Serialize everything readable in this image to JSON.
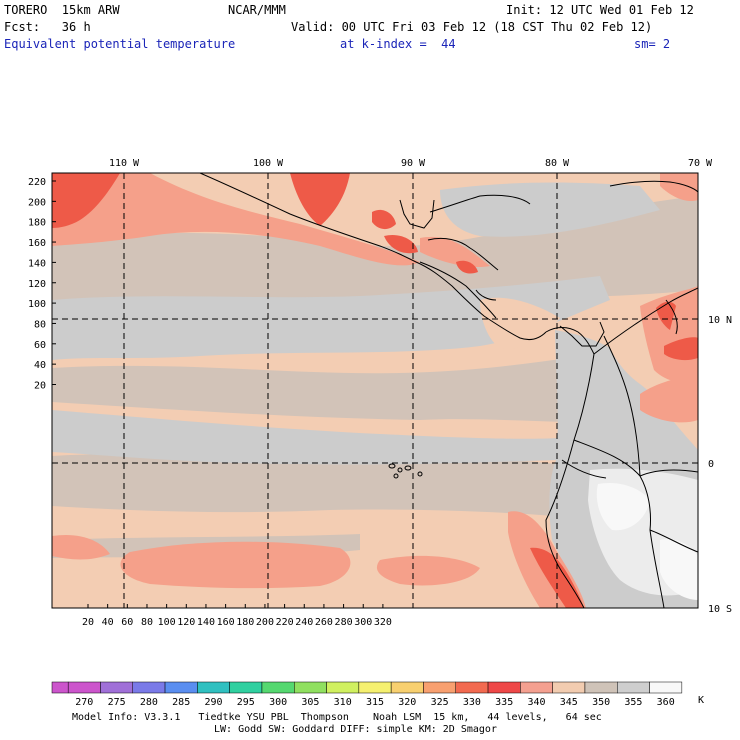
{
  "header": {
    "model": "TORERO  15km ARW",
    "org": "NCAR/MMM",
    "init": "Init: 12 UTC Wed 01 Feb 12",
    "fcst": "Fcst:   36 h",
    "valid": "Valid: 00 UTC Fri 03 Feb 12 (18 CST Thu 02 Feb 12)",
    "field": "Equivalent potential temperature",
    "level": "at k-index =  44",
    "smooth": "sm= 2"
  },
  "map": {
    "lon_labels": [
      "110 W",
      "100 W",
      "90 W",
      "80 W",
      "70 W"
    ],
    "lat_labels": [
      "10 N",
      "0",
      "10 S"
    ],
    "y_ticks": [
      "220",
      "200",
      "180",
      "160",
      "140",
      "120",
      "100",
      "80",
      "60",
      "40",
      "20"
    ],
    "x_ticks": [
      "20",
      "40",
      "60",
      "80",
      "100",
      "120",
      "140",
      "160",
      "180",
      "200",
      "220",
      "240",
      "260",
      "280",
      "300",
      "320"
    ]
  },
  "colorbar": {
    "labels": [
      "270",
      "275",
      "280",
      "285",
      "290",
      "295",
      "300",
      "305",
      "310",
      "315",
      "320",
      "325",
      "330",
      "335",
      "340",
      "345",
      "350",
      "355",
      "360"
    ],
    "unit": "K",
    "colors": [
      "#cc55cc",
      "#a070d8",
      "#7a7ae8",
      "#5a8ef0",
      "#30c0c0",
      "#30d0a0",
      "#55d870",
      "#90e060",
      "#d0f060",
      "#f5f070",
      "#f8d070",
      "#f8a070",
      "#f26a50",
      "#ee4848",
      "#f4a090",
      "#f2ccb0",
      "#cfc3b8",
      "#cecece",
      "#f8f8f8"
    ]
  },
  "footer": {
    "line1": "Model Info: V3.3.1   Tiedtke YSU PBL  Thompson    Noah LSM  15 km,   44 levels,   64 sec",
    "line2": "LW: Godd SW: Goddard DIFF: simple KM: 2D Smagor"
  },
  "palette": {
    "peach": "#f3cdb3",
    "taupe": "#d2c3b8",
    "grey": "#cccccc",
    "light": "#ececec",
    "white": "#f8f8f8",
    "salmon": "#f5a08a",
    "red": "#ee5a48"
  }
}
